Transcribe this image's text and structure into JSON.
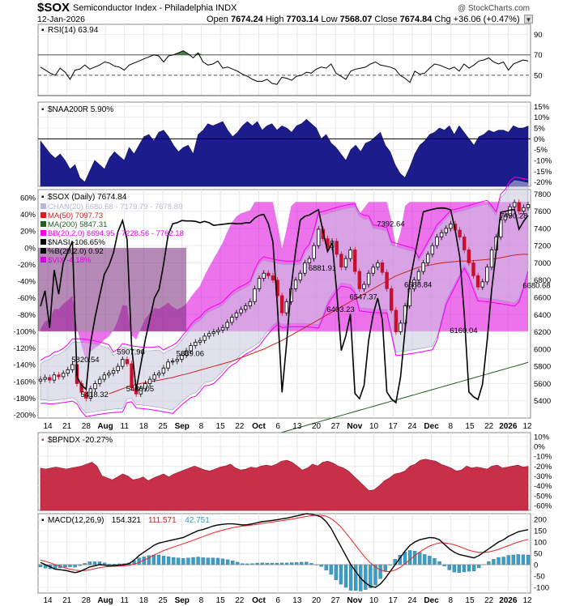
{
  "header": {
    "symbol": "$SOX",
    "name": "Semiconductor Index - Philadelphia INDX",
    "credit": "@ StockCharts.com",
    "date": "12-Jan-2026",
    "open_label": "Open",
    "open": "7674.24",
    "high_label": "High",
    "high": "7703.14",
    "low_label": "Low",
    "low": "7568.07",
    "close_label": "Close",
    "close": "7674.84",
    "chg_label": "Chg",
    "chg": "+36.06 (+0.47%)"
  },
  "colors": {
    "up_candle": "#000000",
    "down_candle": "#c8102e",
    "ma50": "#cc2222",
    "ma200": "#1f5e1f",
    "bb": "#ee00ee",
    "chan_fill": "#c8c8e0",
    "nasi": "#000000",
    "vix_fill": "#dd00dd",
    "naa_fill": "#1c1c8c",
    "bpndx_fill": "#c8304a",
    "macd": "#000000",
    "macd_signal": "#ee2222",
    "macd_hist": "#3a9ec8"
  },
  "chart_data": [
    {
      "type": "line",
      "panel": "RSI",
      "title": "RSI(14) 63.94",
      "y_ticks": [
        50,
        70,
        90
      ],
      "ylim": [
        30,
        100
      ],
      "levels": [
        30,
        50,
        70
      ],
      "values": [
        58,
        55,
        52,
        50,
        57,
        53,
        46,
        55,
        56,
        60,
        56,
        58,
        60,
        63,
        62,
        59,
        58,
        55,
        60,
        62,
        64,
        66,
        68,
        70,
        69,
        63,
        69,
        70,
        72,
        74,
        71,
        67,
        72,
        63,
        60,
        61,
        64,
        57,
        58,
        56,
        54,
        51,
        49,
        46,
        44,
        44,
        46,
        42,
        41,
        48,
        47,
        45,
        49,
        50,
        53,
        52,
        56,
        58,
        57,
        61,
        52,
        49,
        46,
        54,
        56,
        57,
        58,
        61,
        63,
        60,
        59,
        58,
        56,
        50,
        47,
        43,
        54,
        51,
        52,
        57,
        61,
        60,
        58,
        56,
        58,
        54,
        61,
        57,
        60,
        64,
        65,
        67,
        63,
        61,
        63,
        55,
        61,
        63,
        65,
        64
      ]
    },
    {
      "type": "area",
      "panel": "NAA200R",
      "title": "$NAA200R 5.90%",
      "y_ticks": [
        15,
        10,
        5,
        0,
        -5,
        -10,
        -15,
        -20
      ],
      "y_tick_labels": [
        "15%",
        "10%",
        "5%",
        "0%",
        "-5%",
        "-10%",
        "-15%",
        "-20%"
      ],
      "ylim": [
        -22,
        17
      ],
      "values": [
        -1,
        -4,
        -7,
        -9,
        -7,
        -10,
        -14,
        -12,
        -18,
        -20,
        -15,
        -10,
        -12,
        -14,
        -9,
        -6,
        -8,
        -10,
        -4,
        -7,
        -3,
        1,
        2,
        -1,
        3,
        4,
        1,
        -3,
        -6,
        -4,
        -3,
        -7,
        2,
        4,
        7,
        6,
        7,
        8,
        4,
        1,
        3,
        6,
        8,
        6,
        8,
        4,
        6,
        7,
        4,
        6,
        5,
        3,
        6,
        7,
        9,
        7,
        5,
        0,
        2,
        -2,
        -4,
        -7,
        -10,
        -5,
        -3,
        -6,
        -2,
        -1,
        1,
        3,
        -3,
        -6,
        -12,
        -16,
        -18,
        -13,
        -7,
        -3,
        -1,
        2,
        3,
        5,
        4,
        6,
        2,
        6,
        3,
        0,
        -3,
        1,
        2,
        4,
        3,
        4,
        4,
        3,
        6,
        5,
        5,
        5.9
      ]
    },
    {
      "type": "candlestick",
      "panel": "price",
      "title": "$SOX (Daily) 7674.84",
      "legend": [
        {
          "label": "CHAN(20) 6680.68 - 7179.79 - 7678.89",
          "color": "#b8b8d8"
        },
        {
          "label": "MA(50) 7097.73",
          "color": "#cc2222"
        },
        {
          "label": "MA(200) 5847.31",
          "color": "#1f5e1f"
        },
        {
          "label": "BB(20,2.0) 6694.95 - 7228.56 - 7762.18",
          "color": "#ee00ee"
        },
        {
          "label": "$NASI -106.65%",
          "color": "#000000"
        },
        {
          "label": "%B(20,2.0) 0.92",
          "color": "#000000"
        },
        {
          "label": "$VIX -4.18%",
          "color": "#dd00dd"
        }
      ],
      "y_ticks": [
        5400,
        5600,
        5800,
        6000,
        6200,
        6400,
        6600,
        6800,
        7000,
        7200,
        7400,
        7600,
        7800
      ],
      "ylim": [
        5200,
        7850
      ],
      "left_ticks": [
        "60%",
        "40%",
        "20%",
        "0%",
        "-20%",
        "-40%",
        "-60%",
        "-80%",
        "-100%",
        "-120%",
        "-140%",
        "-160%",
        "-180%",
        "-200%"
      ],
      "left_range": [
        -200,
        60
      ],
      "annotations": [
        {
          "text": "5820.54",
          "x": 10,
          "value": 5820.54
        },
        {
          "text": "5418.32",
          "x": 12,
          "value": 5418.32
        },
        {
          "text": "5907.96",
          "x": 20,
          "value": 5907.96
        },
        {
          "text": "5480.05",
          "x": 22,
          "value": 5480.05
        },
        {
          "text": "5889.06",
          "x": 33,
          "value": 5889.06
        },
        {
          "text": "6881.91",
          "x": 62,
          "value": 6881.91
        },
        {
          "text": "6403.23",
          "x": 66,
          "value": 6403.23
        },
        {
          "text": "6547.37",
          "x": 71,
          "value": 6547.37
        },
        {
          "text": "7392.64",
          "x": 77,
          "value": 7392.64
        },
        {
          "text": "6688.84",
          "x": 83,
          "value": 6688.84
        },
        {
          "text": "6160.04",
          "x": 93,
          "value": 6160.04
        },
        {
          "text": "7490.28",
          "x": 104,
          "value": 7490.28
        },
        {
          "text": "6680.68",
          "x": 109,
          "value": 6680.68
        }
      ],
      "closes": [
        5650,
        5670,
        5640,
        5700,
        5680,
        5720,
        5760,
        5820,
        5600,
        5500,
        5430,
        5540,
        5600,
        5650,
        5700,
        5720,
        5750,
        5800,
        5880,
        5830,
        5550,
        5480,
        5540,
        5600,
        5650,
        5700,
        5720,
        5780,
        5850,
        5860,
        5880,
        5930,
        5980,
        6040,
        6080,
        6100,
        6150,
        6180,
        6200,
        6220,
        6250,
        6310,
        6370,
        6420,
        6460,
        6500,
        6550,
        6700,
        6820,
        6880,
        6850,
        6800,
        6620,
        6420,
        6550,
        6700,
        6800,
        6880,
        7000,
        7050,
        7200,
        7390,
        7280,
        7180,
        7250,
        7100,
        6950,
        7050,
        7150,
        6900,
        6700,
        6750,
        6880,
        6950,
        7000,
        6890,
        6700,
        6450,
        6200,
        6300,
        6500,
        6700,
        6800,
        6900,
        7000,
        7100,
        7200,
        7300,
        7350,
        7400,
        7450,
        7380,
        7300,
        7150,
        7000,
        6850,
        6720,
        6780,
        6950,
        7150,
        7300,
        7500,
        7550,
        7650,
        7700,
        7600,
        7640,
        7674.84
      ],
      "ma50": [
        5480,
        5500,
        5520,
        5540,
        5560,
        5575,
        5590,
        5600,
        5610,
        5620,
        5630,
        5640,
        5650,
        5660,
        5670,
        5685,
        5700,
        5710,
        5725,
        5740,
        5755,
        5770,
        5785,
        5800,
        5815,
        5830,
        5845,
        5860,
        5880,
        5900,
        5920,
        5940,
        5960,
        5980,
        6000,
        6025,
        6050,
        6075,
        6100,
        6130,
        6160,
        6190,
        6220,
        6250,
        6280,
        6310,
        6340,
        6370,
        6400,
        6430,
        6460,
        6490,
        6520,
        6550,
        6580,
        6610,
        6640,
        6670,
        6700,
        6730,
        6760,
        6790,
        6820,
        6850,
        6870,
        6890,
        6910,
        6930,
        6950,
        6960,
        6970,
        6980,
        6990,
        7000,
        7005,
        7010,
        7015,
        7020,
        7020,
        7020,
        7025,
        7030,
        7035,
        7040,
        7045,
        7050,
        7060,
        7070,
        7080,
        7090,
        7095,
        7100,
        7097.73
      ],
      "ma200": [
        4800,
        4810,
        4825,
        4840,
        4855,
        4870,
        4885,
        4900,
        4915,
        4930,
        4945,
        4960,
        4975,
        4990,
        5005,
        5020,
        5035,
        5050,
        5065,
        5080,
        5095,
        5110,
        5125,
        5140,
        5155,
        5170,
        5185,
        5200,
        5215,
        5230,
        5245,
        5260,
        5275,
        5290,
        5305,
        5320,
        5335,
        5350,
        5365,
        5380,
        5395,
        5410,
        5425,
        5440,
        5455,
        5470,
        5485,
        5500,
        5515,
        5530,
        5545,
        5560,
        5575,
        5590,
        5605,
        5620,
        5635,
        5650,
        5665,
        5680,
        5695,
        5710,
        5725,
        5740,
        5755,
        5770,
        5785,
        5800,
        5815,
        5830,
        5847.31
      ]
    },
    {
      "type": "area",
      "panel": "BPNDX",
      "title": "$BPNDX -20.27%",
      "y_ticks": [
        10,
        0,
        -10,
        -20,
        -30,
        -40,
        -50,
        -60
      ],
      "y_tick_labels": [
        "10%",
        "0%",
        "-10%",
        "-20%",
        "-30%",
        "-40%",
        "-50%",
        "-60%"
      ],
      "ylim": [
        -65,
        14
      ],
      "values": [
        -22,
        -23,
        -22,
        -21,
        -22,
        -23,
        -22,
        -21,
        -20,
        -18,
        -16,
        -20,
        -30,
        -32,
        -34,
        -31,
        -28,
        -30,
        -34,
        -33,
        -31,
        -35,
        -32,
        -30,
        -28,
        -31,
        -28,
        -26,
        -24,
        -22,
        -20,
        -22,
        -24,
        -25,
        -23,
        -21,
        -20,
        -18,
        -22,
        -24,
        -23,
        -21,
        -22,
        -20,
        -19,
        -20,
        -18,
        -15,
        -14,
        -16,
        -20,
        -24,
        -22,
        -18,
        -20,
        -16,
        -15,
        -17,
        -20,
        -22,
        -25,
        -30,
        -35,
        -40,
        -45,
        -44,
        -40,
        -35,
        -32,
        -28,
        -27,
        -25,
        -20,
        -18,
        -14,
        -13,
        -14,
        -15,
        -18,
        -20,
        -22,
        -25,
        -24,
        -20,
        -22,
        -21,
        -22,
        -23,
        -20,
        -19,
        -22,
        -21,
        -20,
        -19,
        -21,
        -20.27
      ]
    },
    {
      "type": "line",
      "panel": "MACD",
      "title": "MACD(12,26,9) 154.321, 111.571, 42.751",
      "legend": [
        {
          "label": "MACD(12,26,9)",
          "color": "#000000"
        },
        {
          "label": "154.321",
          "color": "#000000"
        },
        {
          "label": "111.571",
          "color": "#cc2222"
        },
        {
          "label": "42.751",
          "color": "#3a9ec8"
        }
      ],
      "y_ticks": [
        200,
        150,
        100,
        50,
        0,
        -50,
        -100
      ],
      "ylim": [
        -125,
        225
      ],
      "macd": [
        10,
        0,
        -10,
        -20,
        -22,
        -25,
        -30,
        -35,
        -30,
        -20,
        -10,
        -5,
        0,
        -2,
        -5,
        -4,
        -2,
        0,
        5,
        20,
        40,
        55,
        70,
        85,
        95,
        100,
        105,
        110,
        115,
        120,
        130,
        140,
        150,
        155,
        162,
        170,
        175,
        178,
        180,
        180,
        178,
        175,
        176,
        180,
        185,
        190,
        192,
        195,
        198,
        202,
        205,
        210,
        215,
        220,
        225,
        222,
        218,
        210,
        190,
        160,
        120,
        80,
        40,
        0,
        -30,
        -60,
        -80,
        -95,
        -100,
        -85,
        -60,
        -30,
        0,
        30,
        60,
        85,
        100,
        110,
        115,
        120,
        118,
        110,
        90,
        70,
        55,
        45,
        40,
        35,
        30,
        40,
        55,
        70,
        85,
        100,
        110,
        125,
        135,
        145,
        150,
        154.321
      ],
      "signal": [
        20,
        15,
        8,
        0,
        -8,
        -14,
        -20,
        -24,
        -26,
        -26,
        -23,
        -18,
        -13,
        -10,
        -8,
        -7,
        -6,
        -5,
        -3,
        2,
        10,
        20,
        30,
        42,
        52,
        62,
        70,
        78,
        85,
        92,
        100,
        108,
        116,
        124,
        132,
        140,
        146,
        152,
        158,
        163,
        167,
        170,
        172,
        175,
        178,
        182,
        185,
        188,
        191,
        194,
        197,
        201,
        205,
        209,
        213,
        216,
        218,
        218,
        214,
        203,
        187,
        166,
        140,
        113,
        84,
        56,
        30,
        8,
        -10,
        -23,
        -30,
        -30,
        -24,
        -12,
        4,
        22,
        40,
        56,
        70,
        82,
        90,
        96,
        96,
        93,
        88,
        80,
        72,
        64,
        58,
        54,
        54,
        56,
        61,
        68,
        76,
        84,
        92,
        100,
        106,
        111.571
      ],
      "hist": [
        -10,
        -15,
        -18,
        -20,
        -14,
        -11,
        -10,
        -11,
        -4,
        6,
        13,
        13,
        13,
        8,
        3,
        3,
        4,
        5,
        8,
        18,
        30,
        35,
        40,
        43,
        43,
        38,
        35,
        32,
        30,
        28,
        30,
        32,
        34,
        31,
        30,
        30,
        29,
        26,
        22,
        17,
        11,
        5,
        4,
        5,
        7,
        8,
        7,
        7,
        7,
        8,
        8,
        9,
        10,
        11,
        12,
        6,
        0,
        -8,
        -24,
        -43,
        -67,
        -86,
        -100,
        -113,
        -114,
        -116,
        -110,
        -103,
        -90,
        -62,
        -30,
        0,
        24,
        42,
        56,
        63,
        60,
        54,
        45,
        38,
        28,
        14,
        -6,
        -23,
        -33,
        -35,
        -32,
        -29,
        -28,
        -14,
        1,
        14,
        24,
        32,
        34,
        41,
        43,
        45,
        44,
        42.751
      ]
    }
  ],
  "x_axis": {
    "labels": [
      "14",
      "21",
      "28",
      "Aug",
      "11",
      "18",
      "25",
      "Sep",
      "8",
      "15",
      "22",
      "Oct",
      "6",
      "13",
      "20",
      "27",
      "Nov",
      "10",
      "17",
      "24",
      "Dec",
      "8",
      "15",
      "22",
      "2026",
      "12"
    ],
    "bold": [
      "Aug",
      "Sep",
      "Oct",
      "Nov",
      "Dec",
      "2026"
    ]
  }
}
